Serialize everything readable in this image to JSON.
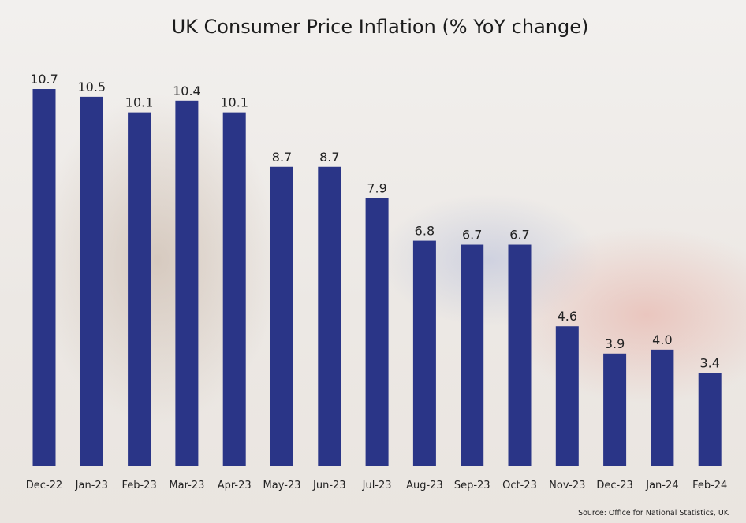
{
  "chart_data": {
    "type": "bar",
    "title": "UK Consumer Price Inflation (% YoY change)",
    "categories": [
      "Dec-22",
      "Jan-23",
      "Feb-23",
      "Mar-23",
      "Apr-23",
      "May-23",
      "Jun-23",
      "Jul-23",
      "Aug-23",
      "Sep-23",
      "Oct-23",
      "Nov-23",
      "Dec-23",
      "Jan-24",
      "Feb-24"
    ],
    "values": [
      10.7,
      10.5,
      10.1,
      10.4,
      10.1,
      8.7,
      8.7,
      7.9,
      6.8,
      6.7,
      6.7,
      4.6,
      3.9,
      4.0,
      3.4
    ],
    "data_labels": [
      "10.7",
      "10.5",
      "10.1",
      "10.4",
      "10.1",
      "8.7",
      "8.7",
      "7.9",
      "6.8",
      "6.7",
      "6.7",
      "4.6",
      "3.9",
      "4.0",
      "3.4"
    ],
    "xlabel": "",
    "ylabel": "",
    "ylim": [
      1,
      11
    ],
    "grid": false,
    "bar_color": "#2a3587"
  },
  "source": "Source: Office for National Statistics, UK"
}
